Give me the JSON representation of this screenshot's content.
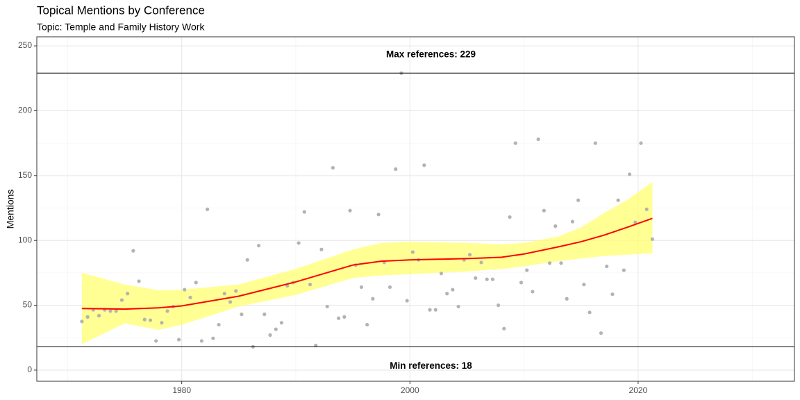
{
  "chart_data": {
    "type": "scatter",
    "title": "Topical Mentions by Conference",
    "subtitle": "Topic: Temple and Family History Work",
    "y_label": "Mentions",
    "xlim": [
      1967.3,
      2033.7
    ],
    "ylim": [
      -8.6,
      257
    ],
    "xticks": [
      1980,
      2000,
      2020
    ],
    "yticks": [
      0,
      50,
      100,
      150,
      200,
      250
    ],
    "x_minor_ticks": [
      1970,
      1990,
      2010,
      2030
    ],
    "y_minor_ticks": [
      25,
      75,
      125,
      175,
      225
    ],
    "grid": true,
    "series": [
      {
        "name": "Mentions",
        "color": "#b3b3b3",
        "x": [
          1971.25,
          1971.75,
          1972.25,
          1972.75,
          1973.25,
          1973.75,
          1974.25,
          1974.75,
          1975.25,
          1975.75,
          1976.25,
          1976.75,
          1977.25,
          1977.75,
          1978.25,
          1978.75,
          1979.25,
          1979.75,
          1980.25,
          1980.75,
          1981.25,
          1981.75,
          1982.25,
          1982.75,
          1983.25,
          1983.75,
          1984.25,
          1984.75,
          1985.25,
          1985.75,
          1986.25,
          1986.75,
          1987.25,
          1987.75,
          1988.25,
          1988.75,
          1989.25,
          1989.75,
          1990.25,
          1990.75,
          1991.25,
          1991.75,
          1992.25,
          1992.75,
          1993.25,
          1993.75,
          1994.25,
          1994.75,
          1995.25,
          1995.75,
          1996.25,
          1996.75,
          1997.25,
          1997.75,
          1998.25,
          1998.75,
          1999.25,
          1999.75,
          2000.25,
          2000.75,
          2001.25,
          2001.75,
          2002.25,
          2002.75,
          2003.25,
          2003.75,
          2004.25,
          2004.75,
          2005.25,
          2005.75,
          2006.25,
          2006.75,
          2007.25,
          2007.75,
          2008.25,
          2008.75,
          2009.25,
          2009.75,
          2010.25,
          2010.75,
          2011.25,
          2011.75,
          2012.25,
          2012.75,
          2013.25,
          2013.75,
          2014.25,
          2014.75,
          2015.25,
          2015.75,
          2016.25,
          2016.75,
          2017.25,
          2017.75,
          2018.25,
          2018.75,
          2019.25,
          2019.75,
          2020.25,
          2020.75,
          2021.25
        ],
        "values": [
          37.5,
          41,
          46.5,
          42,
          46.5,
          45.5,
          45.5,
          54,
          59,
          92,
          68.5,
          39,
          38.5,
          22.5,
          36.5,
          45.5,
          49,
          23.5,
          62,
          56,
          67.5,
          22.5,
          124,
          24.5,
          35,
          59,
          52.5,
          61,
          43,
          85,
          18,
          96,
          43,
          27,
          31.5,
          36.5,
          65,
          67.5,
          98,
          122,
          66,
          19,
          93,
          49,
          156,
          40,
          41,
          123,
          81,
          64,
          35,
          55,
          120,
          83,
          64,
          155,
          229,
          53.5,
          91,
          85,
          158,
          46.5,
          46.5,
          74.5,
          59,
          62,
          49,
          85,
          89,
          71,
          83,
          70,
          70,
          50,
          32,
          118,
          175,
          67.5,
          77,
          60.5,
          178,
          123,
          82.5,
          111,
          82.5,
          55,
          114.5,
          131,
          66,
          44.5,
          175,
          28.5,
          80,
          58.5,
          131,
          77,
          151,
          114,
          175,
          124,
          101
        ]
      }
    ],
    "smooth": {
      "color": "#ff0000",
      "band_color": "#ffff66",
      "x": [
        1971.25,
        1975,
        1978,
        1980,
        1985,
        1990,
        1995,
        1997.5,
        2000,
        2005,
        2008,
        2010,
        2013,
        2015,
        2017,
        2019,
        2021.25
      ],
      "values": [
        47.5,
        47,
        48,
        49.5,
        57,
        68,
        81,
        84,
        85,
        86,
        87,
        89.5,
        95,
        99,
        104,
        110,
        117
      ],
      "lower": [
        20,
        36,
        31,
        35,
        49,
        58,
        71,
        73,
        74,
        76,
        78,
        80,
        84,
        86,
        88,
        89,
        90
      ],
      "upper": [
        75,
        66,
        61.5,
        62,
        66,
        78,
        93,
        98,
        99,
        98,
        97,
        98,
        103,
        110,
        121,
        131,
        145
      ]
    },
    "hlines": [
      {
        "value": 229,
        "label": "Max references: 229"
      },
      {
        "value": 18,
        "label": "Min references: 18"
      }
    ]
  }
}
